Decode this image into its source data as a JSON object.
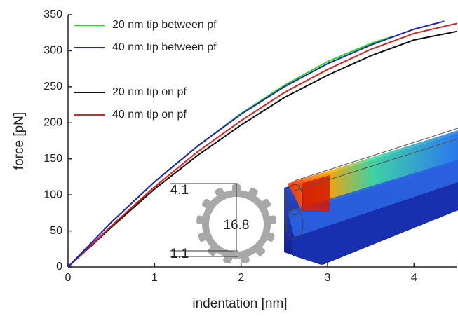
{
  "chart_data": {
    "type": "line",
    "xlabel": "indentation [nm]",
    "ylabel": "force [pN]",
    "xlim": [
      0,
      4.5
    ],
    "xticks": [
      0,
      1,
      2,
      3,
      4
    ],
    "ylim": [
      0,
      350
    ],
    "yticks": [
      0,
      50,
      100,
      150,
      200,
      250,
      300,
      350
    ],
    "legend": "upper left",
    "series": [
      {
        "name": "20 nm tip between pf",
        "color": "#22dd22",
        "x": [
          0,
          0.5,
          1,
          1.5,
          2,
          2.5,
          3,
          3.5,
          3.75
        ],
        "values": [
          0,
          62,
          118,
          168,
          213,
          252,
          285,
          310,
          320
        ]
      },
      {
        "name": "40 nm tip between pf",
        "color": "#2222cc",
        "x": [
          0,
          0.5,
          1,
          1.5,
          2,
          2.5,
          3,
          3.5,
          4,
          4.35
        ],
        "values": [
          0,
          62,
          118,
          168,
          212,
          250,
          282,
          308,
          330,
          341
        ]
      },
      {
        "name": "20 nm tip on pf",
        "color": "#111111",
        "x": [
          0,
          0.5,
          1,
          1.5,
          2,
          2.5,
          3,
          3.5,
          4,
          4.5
        ],
        "values": [
          0,
          55,
          108,
          155,
          197,
          235,
          266,
          293,
          315,
          327
        ]
      },
      {
        "name": "40 nm tip on pf",
        "color": "#dd2222",
        "x": [
          0,
          0.5,
          1,
          1.5,
          2,
          2.5,
          3,
          3.5,
          4,
          4.5
        ],
        "values": [
          0,
          57,
          111,
          160,
          203,
          242,
          274,
          302,
          324,
          338
        ]
      }
    ],
    "annotations": [
      "4.1",
      "16.8",
      "1.1"
    ]
  }
}
